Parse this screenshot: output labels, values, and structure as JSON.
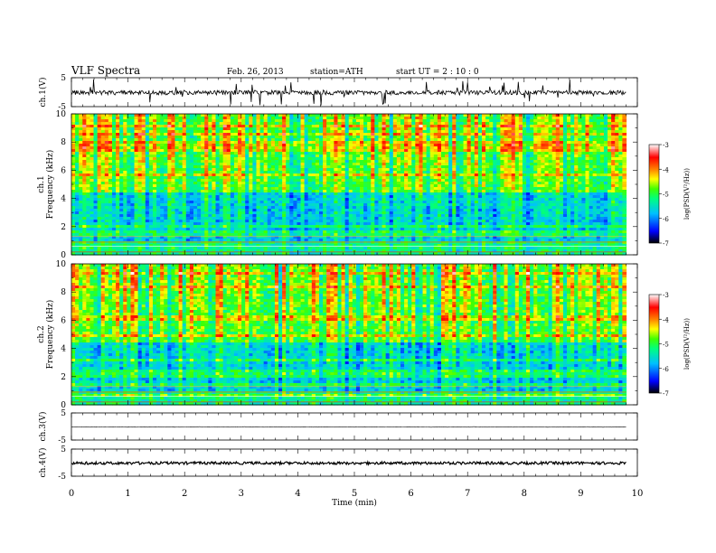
{
  "header": {
    "title": "VLF  Spectra",
    "date": "Feb. 26, 2013",
    "station": "station=ATH",
    "start": "start  UT  =   2  : 10 : 0"
  },
  "chart_data": [
    {
      "type": "line",
      "panel": "ch1-waveform",
      "ylabel": "ch.1(V)",
      "ylim": [
        -5,
        5
      ],
      "yticks": [
        5,
        -5
      ],
      "xlim": [
        0,
        10
      ],
      "note_series": "noisy waveform near 0 V with spikes"
    },
    {
      "type": "heatmap",
      "panel": "ch1-spectrogram",
      "ylabel_top": "ch.1",
      "ylabel": "Frequency  (kHz)",
      "ylim": [
        0,
        10
      ],
      "yticks": [
        0,
        2,
        4,
        6,
        8,
        10
      ],
      "xlim": [
        0,
        10
      ],
      "data_extent_x": [
        0,
        9.8
      ],
      "colorbar": {
        "label": "log(PSD(V²/Hz))",
        "range": [
          -7,
          -3
        ],
        "ticks": [
          "-3",
          "-4",
          "-5",
          "-6",
          "-7"
        ]
      }
    },
    {
      "type": "heatmap",
      "panel": "ch2-spectrogram",
      "ylabel_top": "ch.2",
      "ylabel": "Frequency  (kHz)",
      "ylim": [
        0,
        10
      ],
      "yticks": [
        0,
        2,
        4,
        6,
        8,
        10
      ],
      "xlim": [
        0,
        10
      ],
      "data_extent_x": [
        0,
        9.8
      ],
      "colorbar": {
        "label": "log(PSD(V²/Hz))",
        "range": [
          -7,
          -3
        ],
        "ticks": [
          "-3",
          "-4",
          "-5",
          "-6",
          "-7"
        ]
      }
    },
    {
      "type": "line",
      "panel": "ch3-waveform",
      "ylabel": "ch.3(V)",
      "ylim": [
        -5,
        5
      ],
      "yticks": [
        5,
        -5
      ],
      "xlim": [
        0,
        10
      ],
      "note_series": "flat line near 0 V"
    },
    {
      "type": "line",
      "panel": "ch4-waveform",
      "ylabel": "ch.4(V)",
      "ylim": [
        -5,
        5
      ],
      "yticks": [
        5,
        -5
      ],
      "xlim": [
        0,
        10
      ],
      "note_series": "thick band near 0 V"
    }
  ],
  "xaxis": {
    "label": "Time  (min)",
    "ticks": [
      "0",
      "1",
      "2",
      "3",
      "4",
      "5",
      "6",
      "7",
      "8",
      "9",
      "10"
    ]
  },
  "colors": {
    "colormap": [
      "#000000",
      "#0000ff",
      "#00c0ff",
      "#00ff80",
      "#40ff00",
      "#ffff00",
      "#ff8000",
      "#ff0000",
      "#ffffff"
    ]
  }
}
